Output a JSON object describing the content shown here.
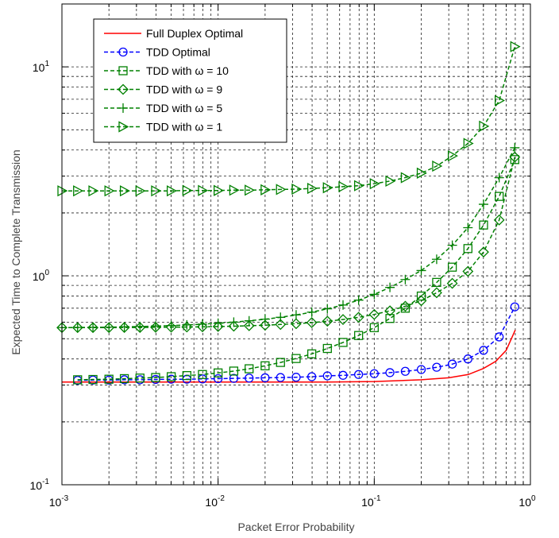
{
  "chart_data": {
    "type": "line",
    "xscale": "log",
    "yscale": "log",
    "xlim": [
      0.001,
      1
    ],
    "ylim": [
      0.1,
      20
    ],
    "grid": true,
    "xlabel": "Packet Error Probability",
    "ylabel": "Expected Time to Complete Transmission",
    "x_ticks": [
      {
        "base": "10",
        "exp": "-3"
      },
      {
        "base": "10",
        "exp": "-2"
      },
      {
        "base": "10",
        "exp": "-1"
      },
      {
        "base": "10",
        "exp": "0"
      }
    ],
    "y_ticks": [
      {
        "base": "10",
        "exp": "-1"
      },
      {
        "base": "10",
        "exp": "0"
      },
      {
        "base": "10",
        "exp": "1"
      }
    ],
    "legend_position": "top-left",
    "series": [
      {
        "name": "Full Duplex Optimal",
        "color": "#ff0000",
        "dash": "solid",
        "marker": "none",
        "x": [
          0.001,
          0.005,
          0.02,
          0.05,
          0.1,
          0.2,
          0.3,
          0.4,
          0.5,
          0.6,
          0.7,
          0.8
        ],
        "y": [
          0.31,
          0.31,
          0.31,
          0.31,
          0.312,
          0.318,
          0.325,
          0.337,
          0.36,
          0.39,
          0.44,
          0.55
        ]
      },
      {
        "name": "TDD Optimal",
        "color": "#0000ff",
        "dash": "dashed",
        "marker": "circle",
        "x": [
          0.00126,
          0.00158,
          0.002,
          0.00251,
          0.00316,
          0.00398,
          0.00501,
          0.00631,
          0.00794,
          0.01,
          0.0126,
          0.0158,
          0.02,
          0.0251,
          0.0316,
          0.0398,
          0.0501,
          0.0631,
          0.0794,
          0.1,
          0.126,
          0.158,
          0.2,
          0.251,
          0.316,
          0.398,
          0.501,
          0.631,
          0.794
        ],
        "y": [
          0.316,
          0.317,
          0.317,
          0.318,
          0.318,
          0.319,
          0.32,
          0.32,
          0.321,
          0.322,
          0.323,
          0.324,
          0.325,
          0.326,
          0.327,
          0.329,
          0.332,
          0.334,
          0.337,
          0.34,
          0.344,
          0.349,
          0.356,
          0.365,
          0.378,
          0.4,
          0.44,
          0.51,
          0.71
        ]
      },
      {
        "name": "TDD with ω = 10",
        "color": "#008000",
        "dash": "dashed",
        "marker": "square",
        "x": [
          0.00126,
          0.00158,
          0.002,
          0.00251,
          0.00316,
          0.00398,
          0.00501,
          0.00631,
          0.00794,
          0.01,
          0.0126,
          0.0158,
          0.02,
          0.0251,
          0.0316,
          0.0398,
          0.0501,
          0.0631,
          0.0794,
          0.1,
          0.126,
          0.158,
          0.2,
          0.251,
          0.316,
          0.398,
          0.501,
          0.631,
          0.794
        ],
        "y": [
          0.318,
          0.319,
          0.32,
          0.322,
          0.324,
          0.326,
          0.329,
          0.333,
          0.337,
          0.343,
          0.35,
          0.359,
          0.371,
          0.385,
          0.402,
          0.423,
          0.449,
          0.48,
          0.518,
          0.565,
          0.625,
          0.7,
          0.8,
          0.93,
          1.1,
          1.35,
          1.75,
          2.4,
          3.6
        ]
      },
      {
        "name": "TDD with ω = 9",
        "color": "#008000",
        "dash": "dashed",
        "marker": "diamond",
        "x": [
          0.001,
          0.00126,
          0.00158,
          0.002,
          0.00251,
          0.00316,
          0.00398,
          0.00501,
          0.00631,
          0.00794,
          0.01,
          0.0126,
          0.0158,
          0.02,
          0.0251,
          0.0316,
          0.0398,
          0.0501,
          0.0631,
          0.0794,
          0.1,
          0.126,
          0.158,
          0.2,
          0.251,
          0.316,
          0.398,
          0.501,
          0.631,
          0.794
        ],
        "y": [
          0.565,
          0.565,
          0.565,
          0.565,
          0.566,
          0.566,
          0.567,
          0.568,
          0.569,
          0.57,
          0.572,
          0.574,
          0.577,
          0.58,
          0.585,
          0.59,
          0.597,
          0.606,
          0.618,
          0.633,
          0.653,
          0.68,
          0.715,
          0.76,
          0.83,
          0.92,
          1.05,
          1.3,
          1.85,
          3.7
        ]
      },
      {
        "name": "TDD with ω = 5",
        "color": "#008000",
        "dash": "dashed",
        "marker": "plus",
        "x": [
          0.001,
          0.00126,
          0.00158,
          0.002,
          0.00251,
          0.00316,
          0.00398,
          0.00501,
          0.00631,
          0.00794,
          0.01,
          0.0126,
          0.0158,
          0.02,
          0.0251,
          0.0316,
          0.0398,
          0.0501,
          0.0631,
          0.0794,
          0.1,
          0.126,
          0.158,
          0.2,
          0.251,
          0.316,
          0.398,
          0.501,
          0.631,
          0.794
        ],
        "y": [
          0.565,
          0.566,
          0.567,
          0.568,
          0.57,
          0.572,
          0.575,
          0.578,
          0.582,
          0.587,
          0.593,
          0.6,
          0.609,
          0.62,
          0.633,
          0.65,
          0.67,
          0.695,
          0.725,
          0.765,
          0.815,
          0.88,
          0.96,
          1.06,
          1.2,
          1.4,
          1.7,
          2.2,
          2.95,
          4.1
        ]
      },
      {
        "name": "TDD with ω = 1",
        "color": "#008000",
        "dash": "dashed",
        "marker": "triangle-right",
        "x": [
          0.001,
          0.00126,
          0.00158,
          0.002,
          0.00251,
          0.00316,
          0.00398,
          0.00501,
          0.00631,
          0.00794,
          0.01,
          0.0126,
          0.0158,
          0.02,
          0.0251,
          0.0316,
          0.0398,
          0.0501,
          0.0631,
          0.0794,
          0.1,
          0.126,
          0.158,
          0.2,
          0.251,
          0.316,
          0.398,
          0.501,
          0.631,
          0.794
        ],
        "y": [
          2.55,
          2.55,
          2.55,
          2.55,
          2.55,
          2.55,
          2.55,
          2.55,
          2.56,
          2.56,
          2.56,
          2.57,
          2.57,
          2.58,
          2.59,
          2.6,
          2.62,
          2.64,
          2.67,
          2.7,
          2.76,
          2.84,
          2.95,
          3.1,
          3.35,
          3.75,
          4.3,
          5.2,
          6.9,
          12.5
        ]
      }
    ]
  }
}
